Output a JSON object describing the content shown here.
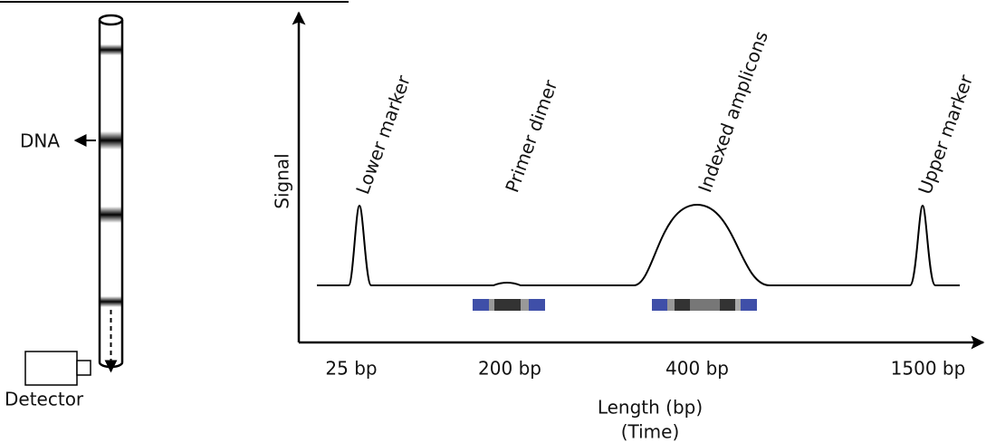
{
  "labels": {
    "dna": "DNA",
    "detector": "Detector",
    "signal": "Signal"
  },
  "peaks": [
    "Lower marker",
    "Primer dimer",
    "Indexed amplicons",
    "Upper marker"
  ],
  "x_labels": [
    "25 bp",
    "200 bp",
    "400 bp",
    "1500 bp"
  ],
  "x_axis_title": "Length (bp)",
  "x_axis_subtitle": "(Time)"
}
